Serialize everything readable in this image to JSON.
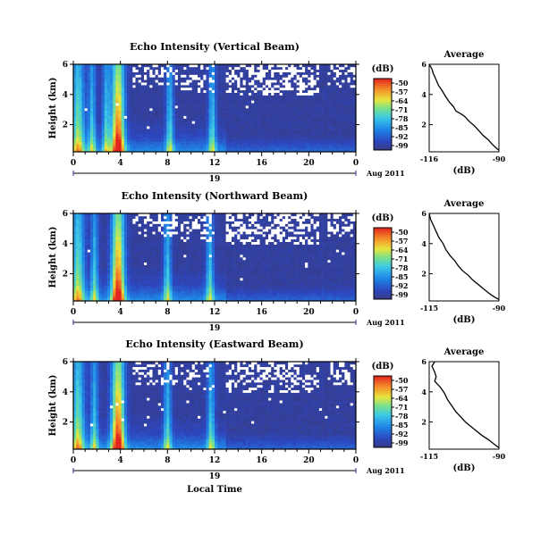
{
  "chart_data": [
    {
      "type": "heatmap",
      "title": "Echo Intensity (Vertical Beam)",
      "ylabel": "Height (km)",
      "x_ticks": [
        "0",
        "4",
        "8",
        "12",
        "16",
        "20",
        "0"
      ],
      "y_ticks": [
        "2",
        "4",
        "6"
      ],
      "date_label": "19",
      "date_suffix": "Aug 2011",
      "xlim": [
        0,
        24
      ],
      "ylim": [
        0.2,
        6
      ],
      "colorbar": {
        "title": "(dB)",
        "ticks": [
          "-50",
          "-57",
          "-64",
          "-71",
          "-78",
          "-85",
          "-92",
          "-99"
        ],
        "range": [
          -99,
          -50
        ]
      },
      "plumes_hours": [
        0.4,
        1.6,
        2.8,
        3.8,
        8.2,
        11.8
      ],
      "profile": {
        "title": "Average",
        "xlabel": "(dB)",
        "x_ticks": [
          "-116",
          "-90"
        ],
        "y_ticks": [
          "2",
          "4",
          "6"
        ],
        "xlim": [
          -116,
          -90
        ],
        "ylim": [
          0.2,
          6
        ],
        "points": [
          [
            -116,
            6.0
          ],
          [
            -115,
            5.7
          ],
          [
            -114.5,
            5.4
          ],
          [
            -113.5,
            5.0
          ],
          [
            -112.5,
            4.6
          ],
          [
            -111,
            4.2
          ],
          [
            -110,
            3.9
          ],
          [
            -108.5,
            3.5
          ],
          [
            -107,
            3.2
          ],
          [
            -106,
            2.9
          ],
          [
            -104,
            2.7
          ],
          [
            -102.5,
            2.5
          ],
          [
            -101,
            2.2
          ],
          [
            -99,
            1.9
          ],
          [
            -97.5,
            1.6
          ],
          [
            -96,
            1.3
          ],
          [
            -94,
            1.0
          ],
          [
            -92.5,
            0.7
          ],
          [
            -91,
            0.45
          ],
          [
            -90,
            0.3
          ]
        ]
      }
    },
    {
      "type": "heatmap",
      "title": "Echo Intensity (Northward Beam)",
      "ylabel": "Height (km)",
      "x_ticks": [
        "0",
        "4",
        "8",
        "12",
        "16",
        "20",
        "0"
      ],
      "y_ticks": [
        "2",
        "4",
        "6"
      ],
      "date_label": "19",
      "date_suffix": "Aug 2011",
      "xlim": [
        0,
        24
      ],
      "ylim": [
        0.2,
        6
      ],
      "colorbar": {
        "title": "(dB)",
        "ticks": [
          "-50",
          "-57",
          "-64",
          "-71",
          "-78",
          "-85",
          "-92",
          "-99"
        ],
        "range": [
          -99,
          -50
        ]
      },
      "plumes_hours": [
        0.4,
        1.8,
        3.8,
        8.0,
        11.6
      ],
      "profile": {
        "title": "Average",
        "xlabel": "(dB)",
        "x_ticks": [
          "-115",
          "-90"
        ],
        "y_ticks": [
          "2",
          "4",
          "6"
        ],
        "xlim": [
          -115,
          -90
        ],
        "ylim": [
          0.2,
          6
        ],
        "points": [
          [
            -115,
            6.0
          ],
          [
            -114.5,
            5.6
          ],
          [
            -113.5,
            5.2
          ],
          [
            -112.5,
            4.8
          ],
          [
            -111.5,
            4.4
          ],
          [
            -110,
            4.0
          ],
          [
            -109,
            3.6
          ],
          [
            -107.5,
            3.2
          ],
          [
            -106,
            2.9
          ],
          [
            -104.5,
            2.5
          ],
          [
            -103,
            2.2
          ],
          [
            -101,
            1.9
          ],
          [
            -99.5,
            1.6
          ],
          [
            -97.5,
            1.3
          ],
          [
            -95.5,
            1.0
          ],
          [
            -93.5,
            0.7
          ],
          [
            -91.5,
            0.45
          ],
          [
            -90,
            0.3
          ]
        ]
      }
    },
    {
      "type": "heatmap",
      "title": "Echo Intensity (Eastward Beam)",
      "ylabel": "Height (km)",
      "x_ticks": [
        "0",
        "4",
        "8",
        "12",
        "16",
        "20",
        "0"
      ],
      "y_ticks": [
        "2",
        "4",
        "6"
      ],
      "date_label": "19",
      "date_suffix": "Aug 2011",
      "xlabel": "Local Time",
      "xlim": [
        0,
        24
      ],
      "ylim": [
        0.2,
        6
      ],
      "colorbar": {
        "title": "(dB)",
        "ticks": [
          "-50",
          "-57",
          "-64",
          "-71",
          "-78",
          "-85",
          "-92",
          "-99"
        ],
        "range": [
          -99,
          -50
        ]
      },
      "plumes_hours": [
        0.4,
        1.8,
        3.8,
        8.0,
        11.7
      ],
      "profile": {
        "title": "Average",
        "xlabel": "(dB)",
        "x_ticks": [
          "-115",
          "-90"
        ],
        "y_ticks": [
          "2",
          "4",
          "6"
        ],
        "xlim": [
          -115,
          -90
        ],
        "ylim": [
          0.2,
          6
        ],
        "points": [
          [
            -113,
            6.0
          ],
          [
            -114,
            5.7
          ],
          [
            -113,
            5.3
          ],
          [
            -112.5,
            5.0
          ],
          [
            -113,
            4.7
          ],
          [
            -111,
            4.3
          ],
          [
            -109.5,
            3.9
          ],
          [
            -108.5,
            3.5
          ],
          [
            -107,
            3.1
          ],
          [
            -105.5,
            2.7
          ],
          [
            -104,
            2.4
          ],
          [
            -102,
            2.0
          ],
          [
            -100,
            1.7
          ],
          [
            -98,
            1.4
          ],
          [
            -96,
            1.1
          ],
          [
            -93.5,
            0.8
          ],
          [
            -91.5,
            0.5
          ],
          [
            -90,
            0.3
          ]
        ]
      }
    }
  ]
}
